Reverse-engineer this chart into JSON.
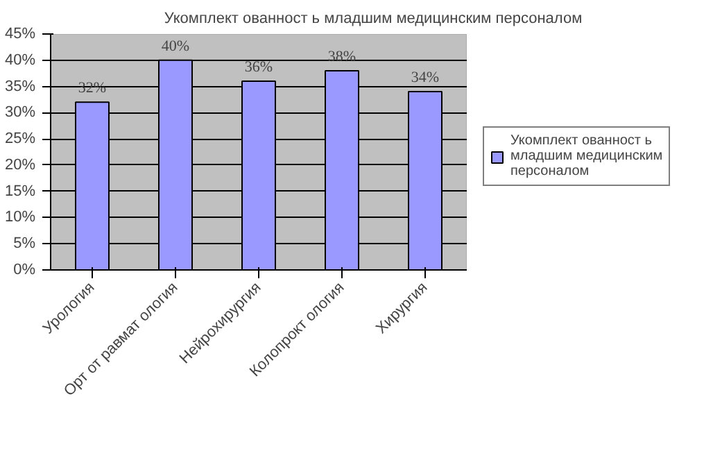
{
  "chart_data": {
    "type": "bar",
    "title": "Укомплект ованност ь младшим медицинским персоналом",
    "categories": [
      "Урология",
      "Орт от равмат ология",
      "Нейрохирургия",
      "Колопрокт ология",
      "Хирургия"
    ],
    "series": [
      {
        "name": "Укомплект ованност ь младшим медицинским персоналом",
        "color": "#9999ff",
        "values": [
          32,
          40,
          36,
          38,
          34
        ],
        "value_labels": [
          "32%",
          "40%",
          "36%",
          "38%",
          "34%"
        ]
      }
    ],
    "ylim": [
      0,
      45
    ],
    "yticks": [
      {
        "value": 0,
        "label": "0%"
      },
      {
        "value": 5,
        "label": "5%"
      },
      {
        "value": 10,
        "label": "10%"
      },
      {
        "value": 15,
        "label": "15%"
      },
      {
        "value": 20,
        "label": "20%"
      },
      {
        "value": 25,
        "label": "25%"
      },
      {
        "value": 30,
        "label": "30%"
      },
      {
        "value": 35,
        "label": "35%"
      },
      {
        "value": 40,
        "label": "40%"
      },
      {
        "value": 45,
        "label": "45%"
      }
    ],
    "grid": "y",
    "legend": "right"
  }
}
